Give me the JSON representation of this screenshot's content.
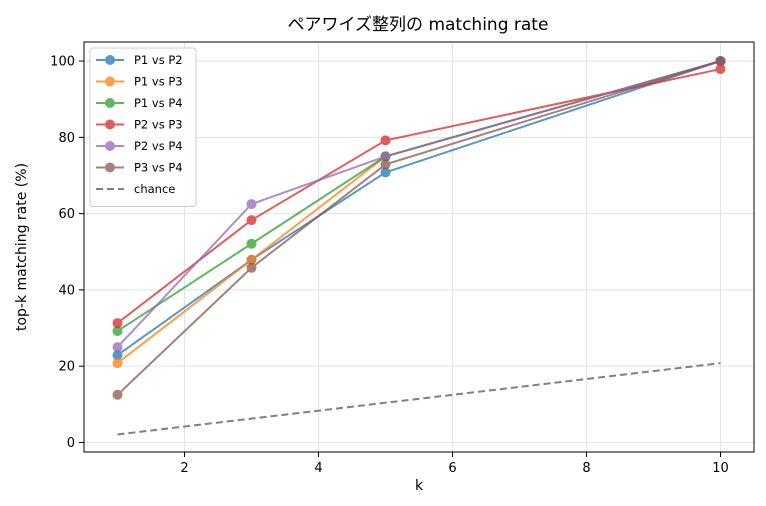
{
  "chart_data": {
    "type": "line",
    "title": "ペアワイズ整列の matching rate",
    "xlabel": "k",
    "ylabel": "top-k matching rate (%)",
    "x": [
      1,
      3,
      5,
      10
    ],
    "xlim": [
      0.5,
      10.5
    ],
    "ylim": [
      -2.5,
      105
    ],
    "xticks": [
      2,
      4,
      6,
      8,
      10
    ],
    "yticks": [
      0,
      20,
      40,
      60,
      80,
      100
    ],
    "grid": true,
    "legend_position": "top-left",
    "series": [
      {
        "name": "P1 vs P2",
        "color": "#1f77b4",
        "values": [
          22.9,
          47.9,
          70.8,
          100
        ]
      },
      {
        "name": "P1 vs P3",
        "color": "#ff7f0e",
        "values": [
          20.8,
          47.9,
          75.0,
          100
        ]
      },
      {
        "name": "P1 vs P4",
        "color": "#2ca02c",
        "values": [
          29.2,
          52.1,
          75.0,
          100
        ]
      },
      {
        "name": "P2 vs P3",
        "color": "#d62728",
        "values": [
          31.3,
          58.3,
          79.2,
          97.9
        ]
      },
      {
        "name": "P2 vs P4",
        "color": "#9467bd",
        "values": [
          25.0,
          62.5,
          75.0,
          100
        ]
      },
      {
        "name": "P3 vs P4",
        "color": "#8c564b",
        "values": [
          12.5,
          45.8,
          72.9,
          100
        ]
      }
    ],
    "reference_line": {
      "name": "chance",
      "color": "#808080",
      "x": [
        1,
        10
      ],
      "values": [
        2.1,
        20.8
      ]
    }
  }
}
